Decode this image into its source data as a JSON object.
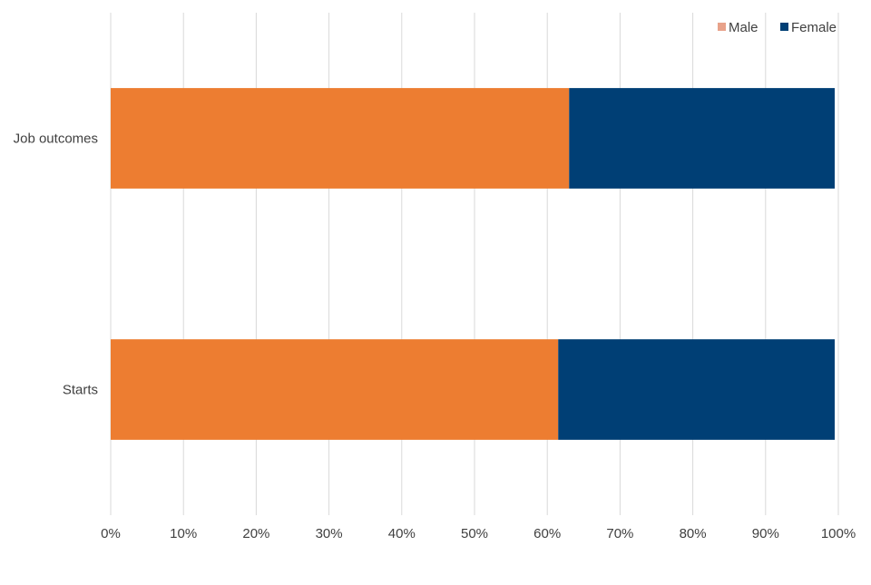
{
  "chart_data": {
    "type": "bar",
    "orientation": "horizontal",
    "stacked": true,
    "categories": [
      "Job outcomes",
      "Starts"
    ],
    "series": [
      {
        "name": "Male",
        "values": [
          63,
          61.5
        ],
        "color": "#ED7D31",
        "legend_color": "#E8A28A"
      },
      {
        "name": "Female",
        "values": [
          36.5,
          38
        ],
        "color": "#003F75",
        "legend_color": "#003F75"
      }
    ],
    "xlim": [
      0,
      100
    ],
    "x_ticks": [
      "0%",
      "10%",
      "20%",
      "30%",
      "40%",
      "50%",
      "60%",
      "70%",
      "80%",
      "90%",
      "100%"
    ],
    "title": "",
    "xlabel": "",
    "ylabel": "",
    "grid": true,
    "legend_position": "top-right"
  }
}
